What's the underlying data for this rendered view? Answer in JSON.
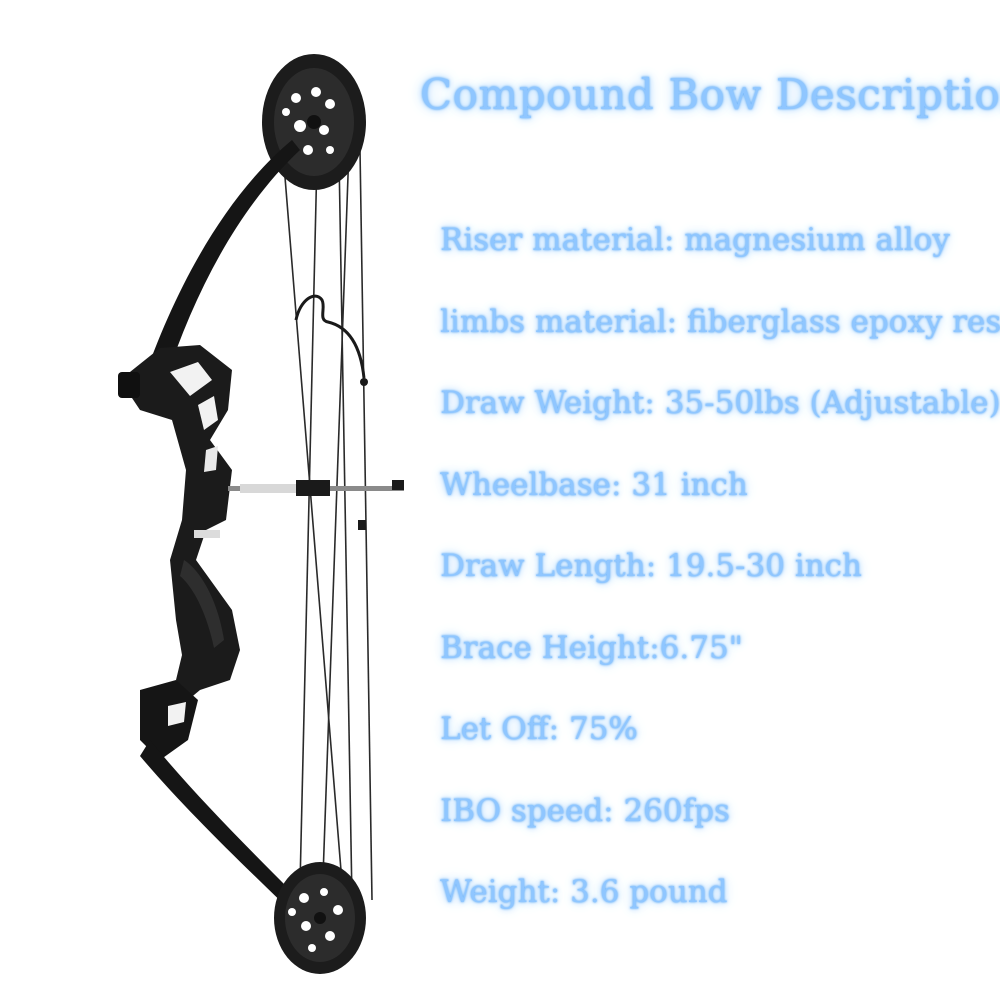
{
  "title": "Compound Bow Description",
  "specs": [
    "Riser material: magnesium alloy",
    "limbs material: fiberglass epoxy resin",
    "Draw Weight: 35-50lbs (Adjustable)",
    "Wheelbase: 31 inch",
    "Draw Length: 19.5-30 inch",
    "Brace Height:6.75\"",
    "Let Off:  75%",
    "IBO speed: 260fps",
    "Weight: 3.6 pound"
  ],
  "colors": {
    "text_glow": "#8fc6ff",
    "bow": "#1a1a1a",
    "background": "#ffffff"
  }
}
